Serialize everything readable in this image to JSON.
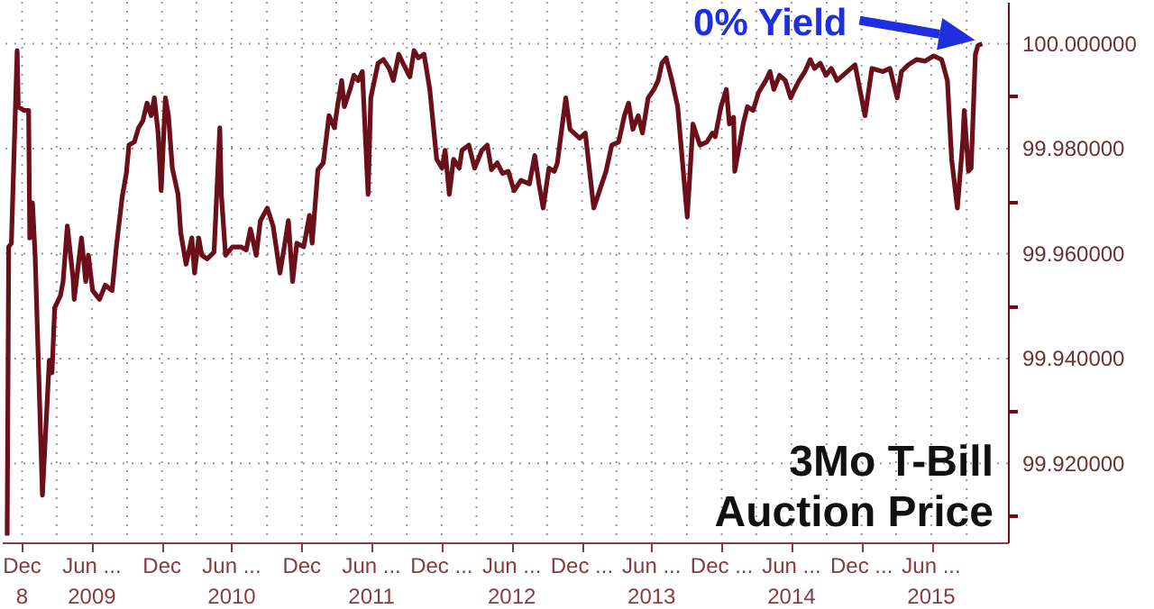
{
  "chart_data": {
    "type": "line",
    "title": "3Mo T-Bill\nAuction Price",
    "annotations": [
      "0% Yield"
    ],
    "x": [
      "2008-11-06",
      "2008-11-10",
      "2008-11-17",
      "2008-12-02",
      "2008-12-05",
      "2008-12-20",
      "2009-01-01",
      "2009-01-04",
      "2009-01-11",
      "2009-01-18",
      "2009-02-06",
      "2009-02-24",
      "2009-03-03",
      "2009-03-10",
      "2009-03-25",
      "2009-04-01",
      "2009-04-12",
      "2009-04-27",
      "2009-04-30",
      "2009-05-19",
      "2009-05-30",
      "2009-06-06",
      "2009-06-17",
      "2009-07-05",
      "2009-07-20",
      "2009-08-07",
      "2009-08-18",
      "2009-09-02",
      "2009-09-13",
      "2009-09-20",
      "2009-10-04",
      "2009-10-15",
      "2009-10-26",
      "2009-11-06",
      "2009-11-17",
      "2009-11-25",
      "2009-12-05",
      "2009-12-13",
      "2009-12-24",
      "2010-01-01",
      "2010-01-11",
      "2010-01-26",
      "2010-02-02",
      "2010-02-16",
      "2010-03-03",
      "2010-03-10",
      "2010-03-21",
      "2010-03-29",
      "2010-04-12",
      "2010-04-30",
      "2010-05-15",
      "2010-05-19",
      "2010-05-30",
      "2010-06-17",
      "2010-07-09",
      "2010-07-23",
      "2010-08-03",
      "2010-08-18",
      "2010-08-29",
      "2010-09-16",
      "2010-10-01",
      "2010-10-19",
      "2010-11-03",
      "2010-11-10",
      "2010-11-21",
      "2010-12-02",
      "2010-12-20",
      "2011-01-04",
      "2011-01-11",
      "2011-01-26",
      "2011-02-09",
      "2011-02-24",
      "2011-03-10",
      "2011-03-18",
      "2011-03-29",
      "2011-04-05",
      "2011-04-20",
      "2011-04-30",
      "2011-05-11",
      "2011-05-22",
      "2011-06-06",
      "2011-06-13",
      "2011-07-02",
      "2011-07-16",
      "2011-07-31",
      "2011-08-11",
      "2011-08-25",
      "2011-09-09",
      "2011-09-23",
      "2011-10-04",
      "2011-10-15",
      "2011-10-30",
      "2011-11-14",
      "2011-12-02",
      "2011-12-16",
      "2011-12-24",
      "2012-01-04",
      "2012-01-15",
      "2012-01-30",
      "2012-02-06",
      "2012-02-24",
      "2012-03-10",
      "2012-03-29",
      "2012-04-12",
      "2012-04-23",
      "2012-05-08",
      "2012-05-22",
      "2012-06-06",
      "2012-06-21",
      "2012-07-09",
      "2012-07-31",
      "2012-08-14",
      "2012-08-25",
      "2012-09-05",
      "2012-09-20",
      "2012-10-04",
      "2012-10-12",
      "2012-11-03",
      "2012-11-14",
      "2012-12-09",
      "2012-12-24",
      "2013-01-15",
      "2013-02-16",
      "2013-03-03",
      "2013-03-21",
      "2013-04-05",
      "2013-04-16",
      "2013-04-27",
      "2013-05-11",
      "2013-05-22",
      "2013-06-06",
      "2013-06-21",
      "2013-07-02",
      "2013-07-12",
      "2013-07-23",
      "2013-08-07",
      "2013-08-22",
      "2013-09-16",
      "2013-10-01",
      "2013-10-19",
      "2013-11-06",
      "2013-11-21",
      "2013-11-28",
      "2013-12-13",
      "2013-12-27",
      "2014-01-04",
      "2014-01-15",
      "2014-01-18",
      "2014-02-09",
      "2014-02-20",
      "2014-03-07",
      "2014-03-21",
      "2014-04-09",
      "2014-04-20",
      "2014-04-30",
      "2014-05-15",
      "2014-05-30",
      "2014-06-13",
      "2014-06-21",
      "2014-07-05",
      "2014-07-20",
      "2014-08-03",
      "2014-08-14",
      "2014-08-29",
      "2014-09-13",
      "2014-09-27",
      "2014-10-12",
      "2014-11-28",
      "2014-12-24",
      "2015-01-11",
      "2015-02-09",
      "2015-02-27",
      "2015-03-18",
      "2015-03-29",
      "2015-04-16",
      "2015-05-08",
      "2015-05-30",
      "2015-06-21",
      "2015-07-12",
      "2015-07-27",
      "2015-08-07",
      "2015-08-22",
      "2015-09-05",
      "2015-09-09",
      "2015-09-20",
      "2015-09-27",
      "2015-10-08",
      "2015-10-15",
      "2015-10-26"
    ],
    "series": [
      {
        "color": "#6b0f1a",
        "values": [
          99.9063,
          99.9613,
          99.962,
          99.9987,
          99.988,
          99.9873,
          99.9873,
          99.963,
          99.9697,
          99.9597,
          99.914,
          99.9397,
          99.9373,
          99.9497,
          99.952,
          99.9547,
          99.9653,
          99.9553,
          99.9513,
          99.963,
          99.9547,
          99.9597,
          99.953,
          99.9513,
          99.954,
          99.953,
          99.9613,
          99.9707,
          99.9753,
          99.9807,
          99.9813,
          99.984,
          99.9853,
          99.9887,
          99.9863,
          99.9897,
          99.983,
          99.972,
          99.9897,
          99.9863,
          99.9763,
          99.9713,
          99.964,
          99.958,
          99.963,
          99.9563,
          99.963,
          99.9597,
          99.959,
          99.9603,
          99.984,
          99.9713,
          99.9597,
          99.9613,
          99.9613,
          99.9607,
          99.9647,
          99.9597,
          99.9663,
          99.9687,
          99.9653,
          99.9563,
          99.963,
          99.9663,
          99.9547,
          99.962,
          99.9613,
          99.9673,
          99.962,
          99.976,
          99.9773,
          99.9863,
          99.984,
          99.988,
          99.993,
          99.988,
          99.9913,
          99.994,
          99.993,
          99.9947,
          99.9713,
          99.9897,
          99.9963,
          99.997,
          99.9953,
          99.993,
          99.998,
          99.9957,
          99.9937,
          99.9987,
          99.9973,
          99.998,
          99.9913,
          99.978,
          99.9763,
          99.9797,
          99.9713,
          99.978,
          99.9763,
          99.9797,
          99.9807,
          99.9763,
          99.9797,
          99.9807,
          99.976,
          99.9773,
          99.9753,
          99.9757,
          99.972,
          99.974,
          99.9733,
          99.9787,
          99.9733,
          99.9687,
          99.9763,
          99.9757,
          99.9773,
          99.9897,
          99.9837,
          99.982,
          99.983,
          99.9687,
          99.9757,
          99.9807,
          99.9813,
          99.9863,
          99.9887,
          99.9837,
          99.9863,
          99.983,
          99.9897,
          99.9913,
          99.993,
          99.9963,
          99.9973,
          99.993,
          99.988,
          99.967,
          99.9847,
          99.9807,
          99.9813,
          99.983,
          99.9823,
          99.988,
          99.9913,
          99.9847,
          99.986,
          99.9757,
          99.9847,
          99.988,
          99.9873,
          99.9907,
          99.993,
          99.9947,
          99.9913,
          99.994,
          99.993,
          99.9897,
          99.991,
          99.993,
          99.9947,
          99.997,
          99.9953,
          99.9963,
          99.994,
          99.9953,
          99.993,
          99.996,
          99.9863,
          99.9953,
          99.9947,
          99.9953,
          99.9897,
          99.9947,
          99.996,
          99.997,
          99.9967,
          99.9977,
          99.997,
          99.993,
          99.978,
          99.9687,
          99.9813,
          99.9873,
          99.9757,
          99.9763,
          99.998,
          99.9997,
          100.0
        ]
      }
    ],
    "xlim": [
      "2008-10-23",
      "2016-01-01"
    ],
    "xticks": [
      {
        "value": "2008-12-15",
        "label": "Dec\n8"
      },
      {
        "value": "2009-03-15",
        "label": null
      },
      {
        "value": "2009-06-15",
        "label": "Jun ...\n2009"
      },
      {
        "value": "2009-09-15",
        "label": null
      },
      {
        "value": "2009-12-15",
        "label": "Dec"
      },
      {
        "value": "2010-03-15",
        "label": null
      },
      {
        "value": "2010-06-15",
        "label": "Jun ...\n2010"
      },
      {
        "value": "2010-09-15",
        "label": null
      },
      {
        "value": "2010-12-15",
        "label": "Dec"
      },
      {
        "value": "2011-03-15",
        "label": null
      },
      {
        "value": "2011-06-15",
        "label": "Jun ...\n2011"
      },
      {
        "value": "2011-09-15",
        "label": null
      },
      {
        "value": "2011-12-15",
        "label": "Dec ..."
      },
      {
        "value": "2012-03-15",
        "label": null
      },
      {
        "value": "2012-06-15",
        "label": "Jun ...\n2012"
      },
      {
        "value": "2012-09-15",
        "label": null
      },
      {
        "value": "2012-12-15",
        "label": "Dec ..."
      },
      {
        "value": "2013-03-15",
        "label": null
      },
      {
        "value": "2013-06-15",
        "label": "Jun ...\n2013"
      },
      {
        "value": "2013-09-15",
        "label": null
      },
      {
        "value": "2013-12-15",
        "label": "Dec ..."
      },
      {
        "value": "2014-03-15",
        "label": null
      },
      {
        "value": "2014-06-15",
        "label": "Jun ...\n2014"
      },
      {
        "value": "2014-09-15",
        "label": null
      },
      {
        "value": "2014-12-15",
        "label": "Dec ..."
      },
      {
        "value": "2015-03-15",
        "label": null
      },
      {
        "value": "2015-06-15",
        "label": "Jun ...\n2015"
      },
      {
        "value": "2015-09-15",
        "label": null
      }
    ],
    "ylim": [
      99.905,
      100.008
    ],
    "yticks": [
      {
        "value": 99.91,
        "label": null
      },
      {
        "value": 99.92,
        "label": "99.920000"
      },
      {
        "value": 99.93,
        "label": null
      },
      {
        "value": 99.94,
        "label": "99.940000"
      },
      {
        "value": 99.95,
        "label": null
      },
      {
        "value": 99.96,
        "label": "99.960000"
      },
      {
        "value": 99.97,
        "label": null
      },
      {
        "value": 99.98,
        "label": "99.980000"
      },
      {
        "value": 99.99,
        "label": null
      },
      {
        "value": 100.0,
        "label": "100.000000"
      }
    ],
    "grid": true,
    "line_style": "solid"
  }
}
